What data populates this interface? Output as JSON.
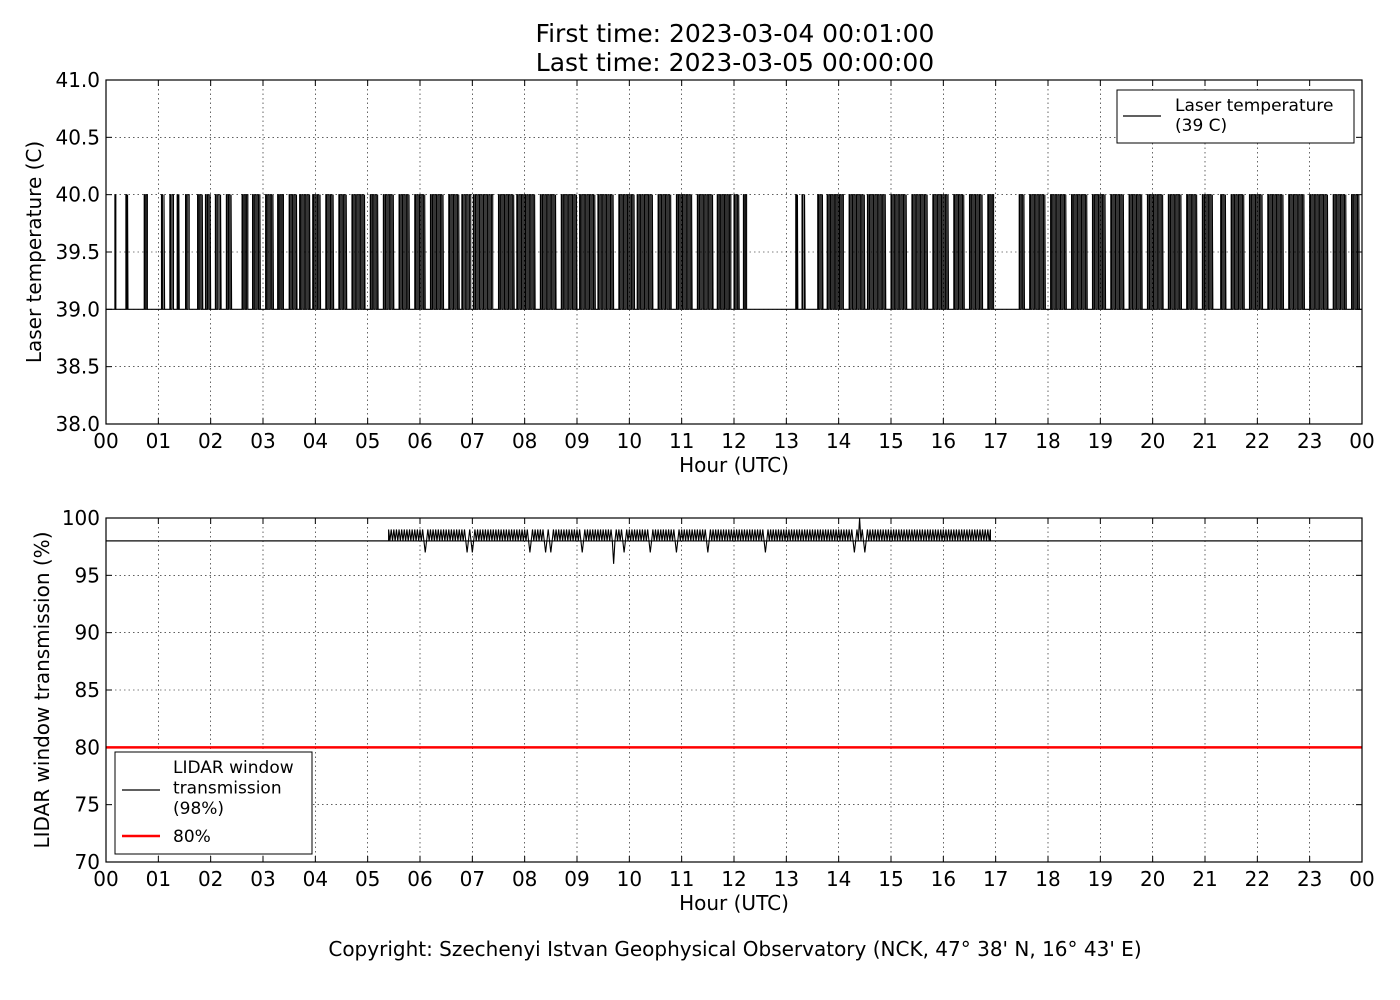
{
  "header": {
    "title_line1": "First time: 2023-03-04 00:01:00",
    "title_line2": "Last time: 2023-03-05 00:00:00"
  },
  "footer": {
    "copyright": "Copyright: Szechenyi Istvan Geophysical Observatory (NCK, 47° 38' N, 16° 43' E)"
  },
  "chart_data": [
    {
      "type": "line",
      "xlabel": "Hour (UTC)",
      "ylabel": "Laser temperature (C)",
      "xlim": [
        0,
        24
      ],
      "ylim": [
        38.0,
        41.0
      ],
      "x_ticks": [
        "00",
        "01",
        "02",
        "03",
        "04",
        "05",
        "06",
        "07",
        "08",
        "09",
        "10",
        "11",
        "12",
        "13",
        "14",
        "15",
        "16",
        "17",
        "18",
        "19",
        "20",
        "21",
        "22",
        "23",
        "00"
      ],
      "y_ticks": [
        "38.0",
        "38.5",
        "39.0",
        "39.5",
        "40.0",
        "40.5",
        "41.0"
      ],
      "grid": true,
      "legend_position": "top-right",
      "legend": [
        "Laser temperature\n(39 C)"
      ],
      "series": [
        {
          "name": "Laser temperature\n(39 C)",
          "color": "#000000",
          "description_values": [
            39,
            40
          ],
          "high_segments": [
            [
              0.17,
              0.2
            ],
            [
              0.38,
              0.42
            ],
            [
              0.73,
              0.8
            ],
            [
              1.06,
              1.12
            ],
            [
              1.22,
              1.3
            ],
            [
              1.36,
              1.4
            ],
            [
              1.52,
              1.6
            ],
            [
              1.75,
              1.85
            ],
            [
              1.9,
              2.0
            ],
            [
              2.09,
              2.2
            ],
            [
              2.3,
              2.4
            ],
            [
              2.6,
              2.72
            ],
            [
              2.8,
              2.95
            ],
            [
              3.05,
              3.2
            ],
            [
              3.28,
              3.4
            ],
            [
              3.5,
              3.65
            ],
            [
              3.7,
              3.9
            ],
            [
              3.95,
              4.1
            ],
            [
              4.2,
              4.35
            ],
            [
              4.45,
              4.6
            ],
            [
              4.7,
              4.95
            ],
            [
              5.05,
              5.2
            ],
            [
              5.3,
              5.5
            ],
            [
              5.6,
              5.8
            ],
            [
              5.9,
              6.1
            ],
            [
              6.2,
              6.45
            ],
            [
              6.55,
              6.75
            ],
            [
              6.8,
              6.98
            ],
            [
              7.02,
              7.4
            ],
            [
              7.5,
              7.8
            ],
            [
              7.85,
              8.2
            ],
            [
              8.3,
              8.6
            ],
            [
              8.7,
              9.0
            ],
            [
              9.05,
              9.35
            ],
            [
              9.4,
              9.7
            ],
            [
              9.8,
              10.1
            ],
            [
              10.15,
              10.45
            ],
            [
              10.55,
              10.8
            ],
            [
              10.9,
              11.2
            ],
            [
              11.3,
              11.6
            ],
            [
              11.68,
              11.95
            ],
            [
              12.0,
              12.1
            ],
            [
              12.18,
              12.25
            ],
            [
              13.18,
              13.22
            ],
            [
              13.3,
              13.36
            ],
            [
              13.6,
              13.7
            ],
            [
              13.78,
              14.1
            ],
            [
              14.2,
              14.5
            ],
            [
              14.55,
              14.9
            ],
            [
              15.0,
              15.3
            ],
            [
              15.4,
              15.7
            ],
            [
              15.8,
              16.1
            ],
            [
              16.2,
              16.4
            ],
            [
              16.5,
              16.75
            ],
            [
              16.85,
              16.97
            ],
            [
              17.45,
              17.55
            ],
            [
              17.65,
              17.95
            ],
            [
              18.05,
              18.35
            ],
            [
              18.45,
              18.75
            ],
            [
              18.85,
              19.1
            ],
            [
              19.2,
              19.45
            ],
            [
              19.55,
              19.8
            ],
            [
              19.9,
              20.2
            ],
            [
              20.3,
              20.55
            ],
            [
              20.65,
              20.85
            ],
            [
              20.95,
              21.15
            ],
            [
              21.3,
              21.4
            ],
            [
              21.5,
              21.75
            ],
            [
              21.85,
              22.1
            ],
            [
              22.2,
              22.5
            ],
            [
              22.6,
              22.9
            ],
            [
              23.0,
              23.35
            ],
            [
              23.45,
              23.7
            ],
            [
              23.8,
              23.95
            ]
          ]
        }
      ]
    },
    {
      "type": "line",
      "xlabel": "Hour (UTC)",
      "ylabel": "LIDAR window transmission (%)",
      "xlim": [
        0,
        24
      ],
      "ylim": [
        70,
        100
      ],
      "x_ticks": [
        "00",
        "01",
        "02",
        "03",
        "04",
        "05",
        "06",
        "07",
        "08",
        "09",
        "10",
        "11",
        "12",
        "13",
        "14",
        "15",
        "16",
        "17",
        "18",
        "19",
        "20",
        "21",
        "22",
        "23",
        "00"
      ],
      "y_ticks": [
        "70",
        "75",
        "80",
        "85",
        "90",
        "95",
        "100"
      ],
      "grid": true,
      "legend_position": "bottom-left",
      "legend": [
        "LIDAR window\ntransmission\n(98%)",
        "80%"
      ],
      "series": [
        {
          "name": "LIDAR window\ntransmission\n(98%)",
          "color": "#000000",
          "baseline": 98,
          "active_range": [
            5.4,
            16.9
          ],
          "values_range": [
            96,
            100
          ],
          "dips": [
            [
              6.1,
              97
            ],
            [
              6.9,
              97
            ],
            [
              7.0,
              97
            ],
            [
              8.1,
              97
            ],
            [
              8.4,
              97
            ],
            [
              8.5,
              97
            ],
            [
              9.1,
              97
            ],
            [
              9.7,
              96
            ],
            [
              9.9,
              97
            ],
            [
              10.4,
              97
            ],
            [
              10.9,
              97
            ],
            [
              11.5,
              97
            ],
            [
              12.6,
              97
            ],
            [
              14.4,
              100
            ],
            [
              14.3,
              97
            ],
            [
              14.5,
              97
            ]
          ]
        },
        {
          "name": "80%",
          "color": "#ff0000",
          "values": [
            80,
            80
          ],
          "x": [
            0,
            24
          ]
        }
      ]
    }
  ]
}
